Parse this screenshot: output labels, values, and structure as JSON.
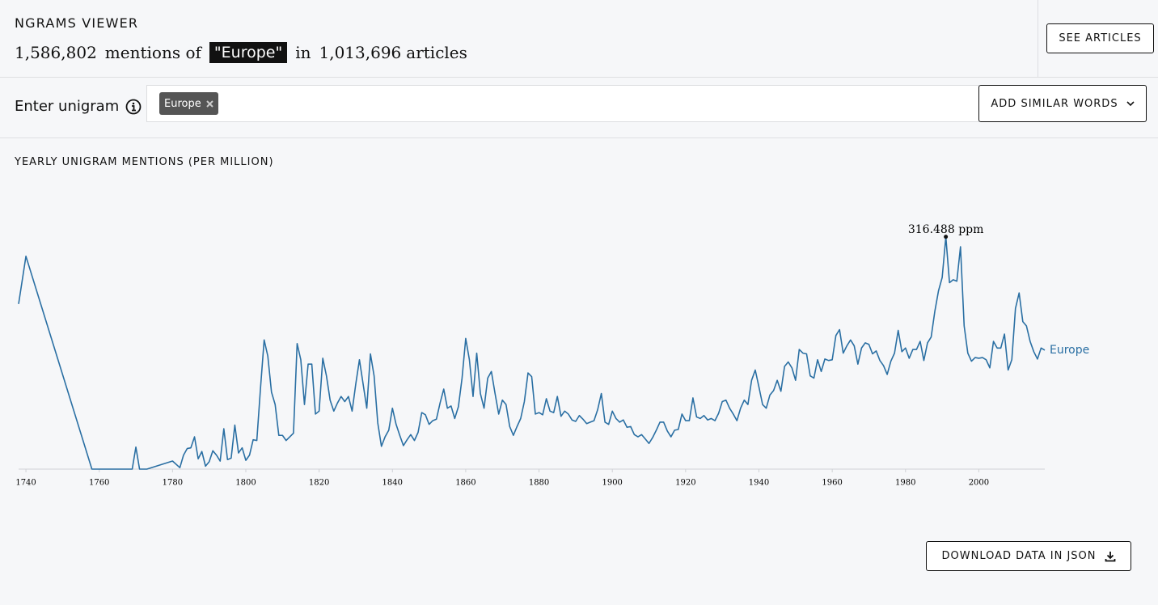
{
  "header": {
    "title": "NGRAMS VIEWER",
    "mentions": "1,586,802",
    "mentions_of": "mentions of",
    "term": "\"Europe\"",
    "in": "in",
    "articles": "1,013,696",
    "articles_label": "articles"
  },
  "see_articles": "SEE ARTICLES",
  "input": {
    "label": "Enter unigram",
    "chips": [
      "Europe"
    ]
  },
  "add_similar": "ADD SIMILAR WORDS",
  "download": "DOWNLOAD DATA IN JSON",
  "chart_data": {
    "type": "line",
    "title": "YEARLY UNIGRAM MENTIONS (PER MILLION)",
    "x": [
      1738,
      1740,
      1758,
      1769,
      1770,
      1771,
      1773,
      1780,
      1782,
      1783,
      1784,
      1785,
      1786,
      1787,
      1788,
      1789,
      1790,
      1791,
      1792,
      1793,
      1794,
      1795,
      1796,
      1797,
      1798,
      1799,
      1800,
      1801,
      1802,
      1803,
      1804,
      1805,
      1806,
      1807,
      1808,
      1809,
      1810,
      1811,
      1812,
      1813,
      1814,
      1815,
      1816,
      1817,
      1818,
      1819,
      1820,
      1821,
      1822,
      1823,
      1824,
      1825,
      1826,
      1827,
      1828,
      1829,
      1830,
      1831,
      1832,
      1833,
      1834,
      1835,
      1836,
      1837,
      1838,
      1839,
      1840,
      1841,
      1842,
      1843,
      1844,
      1845,
      1846,
      1847,
      1848,
      1849,
      1850,
      1851,
      1852,
      1853,
      1854,
      1855,
      1856,
      1857,
      1858,
      1859,
      1860,
      1861,
      1862,
      1863,
      1864,
      1865,
      1866,
      1867,
      1868,
      1869,
      1870,
      1871,
      1872,
      1873,
      1874,
      1875,
      1876,
      1877,
      1878,
      1879,
      1880,
      1881,
      1882,
      1883,
      1884,
      1885,
      1886,
      1887,
      1888,
      1889,
      1890,
      1891,
      1892,
      1893,
      1894,
      1895,
      1896,
      1897,
      1898,
      1899,
      1900,
      1901,
      1902,
      1903,
      1904,
      1905,
      1906,
      1907,
      1908,
      1909,
      1910,
      1911,
      1912,
      1913,
      1914,
      1915,
      1916,
      1917,
      1918,
      1919,
      1920,
      1921,
      1922,
      1923,
      1924,
      1925,
      1926,
      1927,
      1928,
      1929,
      1930,
      1931,
      1932,
      1933,
      1934,
      1935,
      1936,
      1937,
      1938,
      1939,
      1940,
      1941,
      1942,
      1943,
      1944,
      1945,
      1946,
      1947,
      1948,
      1949,
      1950,
      1951,
      1952,
      1953,
      1954,
      1955,
      1956,
      1957,
      1958,
      1959,
      1960,
      1961,
      1962,
      1963,
      1964,
      1965,
      1966,
      1967,
      1968,
      1969,
      1970,
      1971,
      1972,
      1973,
      1974,
      1975,
      1976,
      1977,
      1978,
      1979,
      1980,
      1981,
      1982,
      1983,
      1984,
      1985,
      1986,
      1987,
      1988,
      1989,
      1990,
      1991,
      1992,
      1993,
      1994,
      1995,
      1996,
      1997,
      1998,
      1999,
      2000,
      2001,
      2002,
      2003,
      2004,
      2005,
      2006,
      2007,
      2008,
      2009,
      2010,
      2011,
      2012,
      2013,
      2014,
      2015,
      2016,
      2017,
      2018
    ],
    "series": [
      {
        "name": "Europe",
        "color": "#2a6fa3",
        "values": [
          225,
          290,
          0,
          0,
          30,
          0,
          0,
          11,
          2,
          19,
          28,
          29,
          44,
          14,
          24,
          4,
          10,
          25,
          19,
          11,
          55,
          13,
          15,
          60,
          22,
          29,
          12,
          19,
          40,
          39,
          110,
          176,
          154,
          105,
          88,
          46,
          46,
          39,
          44,
          49,
          171,
          149,
          88,
          143,
          143,
          75,
          79,
          151,
          127,
          94,
          79,
          90,
          99,
          92,
          99,
          79,
          116,
          149,
          116,
          83,
          157,
          127,
          63,
          31,
          44,
          53,
          83,
          61,
          46,
          32,
          40,
          47,
          39,
          50,
          77,
          74,
          61,
          66,
          68,
          90,
          109,
          83,
          86,
          69,
          85,
          124,
          178,
          149,
          99,
          158,
          103,
          83,
          124,
          133,
          103,
          75,
          94,
          88,
          58,
          46,
          58,
          69,
          92,
          131,
          126,
          75,
          77,
          74,
          96,
          79,
          77,
          99,
          72,
          79,
          75,
          67,
          65,
          73,
          68,
          62,
          64,
          66,
          81,
          103,
          64,
          61,
          79,
          69,
          64,
          67,
          57,
          58,
          47,
          44,
          47,
          41,
          35,
          43,
          53,
          64,
          64,
          52,
          44,
          53,
          54,
          75,
          66,
          66,
          97,
          71,
          69,
          73,
          67,
          69,
          66,
          76,
          92,
          94,
          83,
          75,
          66,
          83,
          94,
          88,
          121,
          135,
          112,
          88,
          83,
          101,
          107,
          121,
          106,
          140,
          146,
          138,
          121,
          163,
          158,
          157,
          127,
          124,
          149,
          133,
          150,
          148,
          149,
          182,
          190,
          158,
          168,
          176,
          168,
          143,
          165,
          172,
          170,
          157,
          161,
          148,
          141,
          129,
          147,
          158,
          189,
          160,
          165,
          151,
          163,
          163,
          174,
          148,
          172,
          180,
          215,
          243,
          261,
          316.488,
          254,
          258,
          256,
          303,
          195,
          158,
          147,
          152,
          151,
          152,
          149,
          138,
          174,
          165,
          165,
          184,
          135,
          149,
          219,
          240,
          201,
          195,
          174,
          160,
          150,
          165,
          162
        ]
      }
    ],
    "peak": {
      "value": 316.488,
      "label": "316.488 ppm"
    },
    "xlim": [
      1738,
      2018
    ],
    "xticks": [
      1740,
      1760,
      1780,
      1800,
      1820,
      1840,
      1860,
      1880,
      1900,
      1920,
      1940,
      1960,
      1980,
      2000
    ],
    "ylim": [
      0,
      400
    ],
    "grid": false
  }
}
